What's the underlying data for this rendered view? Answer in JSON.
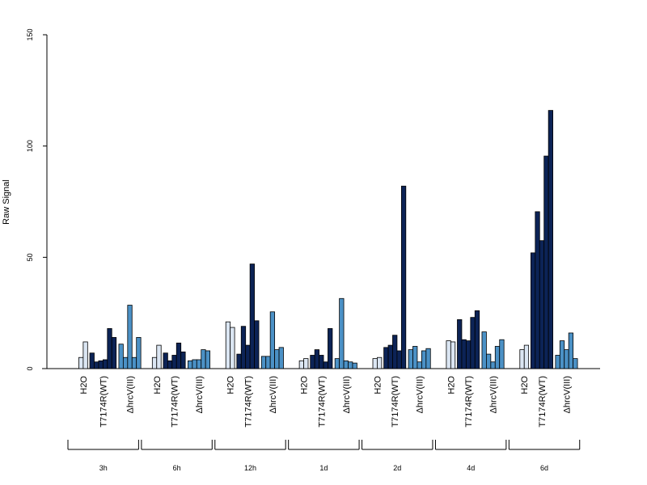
{
  "chart_data": {
    "type": "bar",
    "ylabel": "Raw Signal",
    "ylim": [
      0,
      150
    ],
    "yticks": [
      "0",
      "50",
      "100",
      "150"
    ],
    "grid": false,
    "legend": "none",
    "colors": {
      "H2O": "#dbe6f3",
      "T7174R(WT)": "#0c2356",
      "ΔhrcV(III)": "#4b91c6",
      "border": "#000000"
    },
    "groups": [
      "H2O",
      "T7174R(WT)",
      "ΔhrcV(III)"
    ],
    "periods": [
      {
        "label": "3h",
        "H2O": [
          0,
          5,
          12
        ],
        "T7174R(WT)": [
          7,
          3,
          3.5,
          4,
          18,
          14
        ],
        "ΔhrcV(III)": [
          11,
          5,
          28.5,
          5,
          14
        ]
      },
      {
        "label": "6h",
        "H2O": [
          0,
          5,
          10.5
        ],
        "T7174R(WT)": [
          7,
          3.5,
          6,
          11.5,
          7.5
        ],
        "ΔhrcV(III)": [
          3.5,
          4,
          4,
          8.5,
          8
        ]
      },
      {
        "label": "12h",
        "H2O": [
          0,
          21,
          18.5
        ],
        "T7174R(WT)": [
          6.5,
          19,
          10.5,
          47,
          21.5
        ],
        "ΔhrcV(III)": [
          5.5,
          5.5,
          25.5,
          8.5,
          9.5
        ]
      },
      {
        "label": "1d",
        "H2O": [
          0,
          3.5,
          4.5
        ],
        "T7174R(WT)": [
          6,
          8.5,
          6,
          3,
          18
        ],
        "ΔhrcV(III)": [
          4.5,
          31.5,
          3.5,
          3,
          2.5
        ]
      },
      {
        "label": "2d",
        "H2O": [
          0,
          4.5,
          5
        ],
        "T7174R(WT)": [
          9.5,
          10.5,
          15,
          8,
          82
        ],
        "ΔhrcV(III)": [
          8.5,
          10,
          3,
          8,
          9
        ]
      },
      {
        "label": "4d",
        "H2O": [
          0,
          12.5,
          12
        ],
        "T7174R(WT)": [
          22,
          13,
          12.5,
          23,
          26
        ],
        "ΔhrcV(III)": [
          16.5,
          6.5,
          3,
          10,
          13
        ]
      },
      {
        "label": "6d",
        "H2O": [
          0,
          8.5,
          10.5
        ],
        "T7174R(WT)": [
          52,
          70.5,
          57.5,
          95.5,
          116
        ],
        "ΔhrcV(III)": [
          6,
          12.5,
          8.5,
          16,
          4.5
        ]
      }
    ]
  }
}
